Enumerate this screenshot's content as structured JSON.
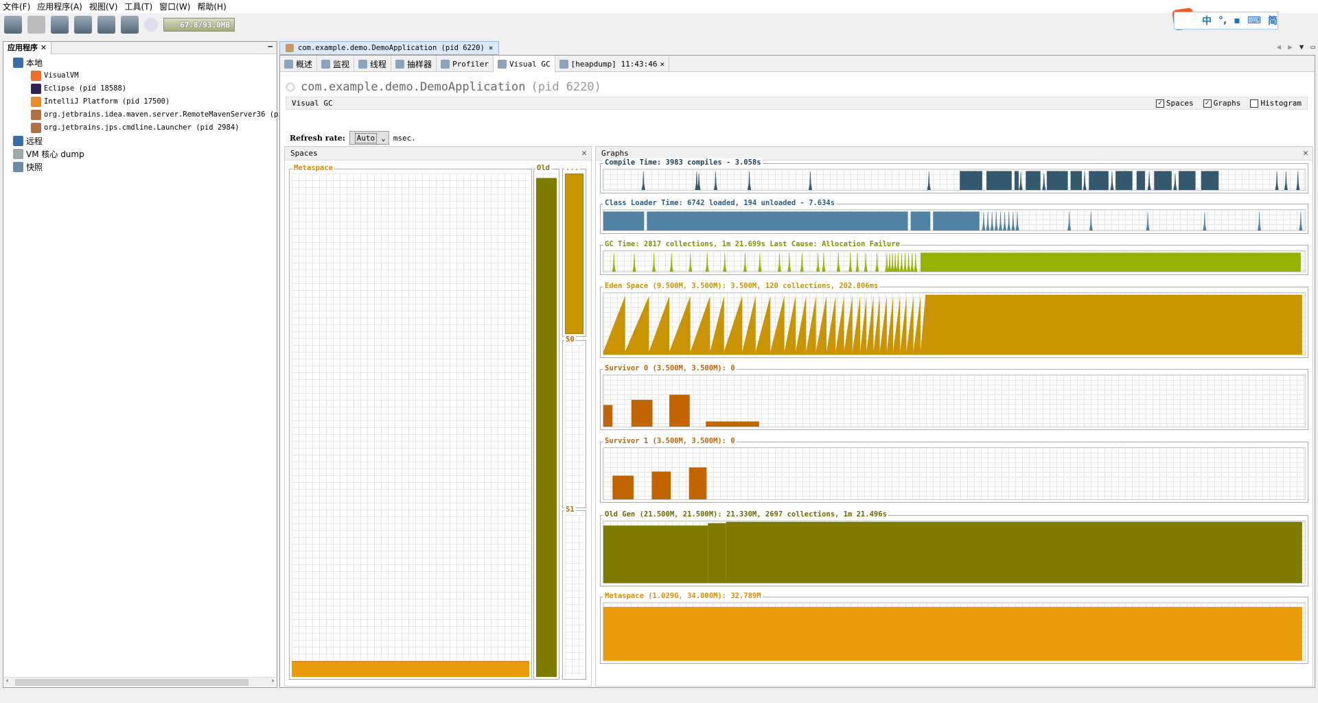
{
  "menu": [
    "文件(F)",
    "应用程序(A)",
    "视图(V)",
    "工具(T)",
    "窗口(W)",
    "帮助(H)"
  ],
  "memory": "67.8/93.0MB",
  "ime": {
    "logo": "S",
    "items": [
      "中",
      "°,",
      "▪",
      "⌨",
      "简"
    ]
  },
  "left": {
    "tab": "应用程序",
    "tree": [
      {
        "label": "本地",
        "level": 0,
        "icon": "computer-icon"
      },
      {
        "label": "VisualVM",
        "level": 1,
        "icon": "visualvm-icon"
      },
      {
        "label": "Eclipse (pid 18588)",
        "level": 1,
        "icon": "eclipse-icon"
      },
      {
        "label": "IntelliJ Platform (pid 17500)",
        "level": 1,
        "icon": "intellij-icon"
      },
      {
        "label": "org.jetbrains.idea.maven.server.RemoteMavenServer36 (pid",
        "level": 1,
        "icon": "java-icon"
      },
      {
        "label": "org.jetbrains.jps.cmdline.Launcher (pid 2984)",
        "level": 1,
        "icon": "java-icon"
      },
      {
        "label": "远程",
        "level": 0,
        "icon": "remote-icon"
      },
      {
        "label": "VM 核心 dump",
        "level": 0,
        "icon": "coredump-icon"
      },
      {
        "label": "快照",
        "level": 0,
        "icon": "snapshot-icon"
      }
    ]
  },
  "doc_tab": "com.example.demo.DemoApplication (pid 6220)",
  "subtabs": [
    "概述",
    "监视",
    "线程",
    "抽样器",
    "Profiler",
    "Visual GC",
    "[heapdump] 11:43:46"
  ],
  "app_title": "com.example.demo.DemoApplication",
  "app_pid": "(pid 6220)",
  "visual_gc": {
    "title": "Visual GC",
    "options": [
      {
        "label": "Spaces",
        "checked": true
      },
      {
        "label": "Graphs",
        "checked": true
      },
      {
        "label": "Histogram",
        "checked": false
      }
    ],
    "refresh_label": "Refresh rate:",
    "refresh_value": "Auto",
    "refresh_unit": "msec."
  },
  "spaces": {
    "title": "Spaces",
    "metaspace": {
      "label": "Metaspace",
      "fill": 0.032
    },
    "old": {
      "label": "Old",
      "fill": 0.992
    },
    "eden": {
      "label": "...",
      "fill": 1.0
    },
    "s0": {
      "label": "S0",
      "fill": 0
    },
    "s1": {
      "label": "S1",
      "fill": 0
    }
  },
  "graphs": {
    "title": "Graphs",
    "items": [
      {
        "label": "Compile Time: 3983 compiles - 3.058s",
        "color": "#34586e",
        "lcolor": "#1f3c55",
        "spikes": [
          [
            5.7,
            0.9
          ],
          [
            13.3,
            0.9
          ],
          [
            13.6,
            0.8
          ],
          [
            16,
            0.9
          ],
          [
            20.8,
            0.9
          ],
          [
            29.5,
            0.9
          ],
          [
            46.4,
            0.9
          ],
          [
            59.5,
            0.9
          ],
          [
            62.8,
            0.8
          ],
          [
            68.6,
            0.9
          ],
          [
            72.5,
            0.9
          ],
          [
            77.8,
            0.9
          ],
          [
            81.5,
            0.8
          ],
          [
            96,
            0.9
          ],
          [
            97.3,
            0.9
          ],
          [
            99,
            0.9
          ]
        ],
        "blocks": [
          [
            50.8,
            54,
            0.92
          ],
          [
            54.6,
            58.2,
            0.92
          ],
          [
            58.6,
            59.2,
            0.92
          ],
          [
            60.2,
            62.3,
            0.92
          ],
          [
            63.2,
            66.2,
            0.92
          ],
          [
            66.6,
            68.2,
            0.92
          ],
          [
            69.2,
            72,
            0.92
          ],
          [
            73,
            75.4,
            0.92
          ],
          [
            76,
            77.2,
            0.92
          ],
          [
            78.5,
            81,
            0.92
          ],
          [
            82,
            84.4,
            0.92
          ],
          [
            85.2,
            87.7,
            0.92
          ]
        ]
      },
      {
        "label": "Class Loader Time: 6742 loaded, 194 unloaded - 7.634s",
        "color": "#5082a4",
        "lcolor": "#2b5a80",
        "blocks": [
          [
            0,
            5.8,
            0.92
          ],
          [
            6.2,
            43.4,
            0.92
          ],
          [
            43.8,
            46.6,
            0.92
          ],
          [
            47,
            53.6,
            0.92
          ]
        ],
        "spikes": [
          [
            54.2,
            0.9
          ],
          [
            54.8,
            0.9
          ],
          [
            55.4,
            0.9
          ],
          [
            56,
            0.9
          ],
          [
            56.6,
            0.9
          ],
          [
            57.2,
            0.9
          ],
          [
            57.8,
            0.9
          ],
          [
            58.4,
            0.9
          ],
          [
            59,
            0.9
          ],
          [
            66.4,
            0.9
          ],
          [
            69.5,
            0.9
          ],
          [
            77.6,
            0.9
          ],
          [
            85.7,
            0.9
          ],
          [
            93.5,
            0.9
          ],
          [
            99.4,
            0.9
          ]
        ]
      },
      {
        "label": "GC Time: 2817 collections, 1m 21.699s  Last Cause: Allocation Failure",
        "color": "#94b300",
        "lcolor": "#7a9400",
        "spikes": [
          [
            1.5,
            0.9
          ],
          [
            4.4,
            0.9
          ],
          [
            7.2,
            0.9
          ],
          [
            9.7,
            0.9
          ],
          [
            12.4,
            0.9
          ],
          [
            14.8,
            0.9
          ],
          [
            17.3,
            0.9
          ],
          [
            20.2,
            0.9
          ],
          [
            22.3,
            0.9
          ],
          [
            25.1,
            0.9
          ],
          [
            26.5,
            0.9
          ],
          [
            28.3,
            0.9
          ],
          [
            30.6,
            0.9
          ],
          [
            31.4,
            0.9
          ],
          [
            33.5,
            0.9
          ],
          [
            35.2,
            0.9
          ],
          [
            36.2,
            0.9
          ],
          [
            37.4,
            0.9
          ],
          [
            39,
            0.9
          ],
          [
            40.4,
            0.9
          ],
          [
            40.8,
            0.9
          ],
          [
            41.2,
            0.9
          ],
          [
            41.6,
            0.9
          ],
          [
            42,
            0.9
          ],
          [
            42.5,
            0.9
          ],
          [
            43,
            0.9
          ],
          [
            43.5,
            0.9
          ],
          [
            44,
            0.9
          ],
          [
            44.5,
            0.9
          ]
        ],
        "blocks": [
          [
            45.2,
            99.4,
            0.92
          ]
        ]
      },
      {
        "label": "Eden Space (9.500M, 3.500M): 3.500M, 120 collections, 202.806ms",
        "color": "#c99400",
        "lcolor": "#c99400",
        "saw": [
          3.1,
          6.5,
          9.4,
          12.4,
          15.2,
          17.2,
          19.8,
          21.7,
          23.8,
          25.8,
          27.4,
          28.9,
          30.3,
          31.8,
          33.1,
          34.3,
          35.5,
          36.6,
          37.5,
          38.5,
          39.4,
          40.4,
          41.3,
          42.3,
          43.2,
          44.2,
          45.2,
          45.9
        ],
        "blocks": [
          [
            45.9,
            99.6,
            0.97
          ]
        ]
      },
      {
        "label": "Survivor 0 (3.500M, 3.500M): 0",
        "color": "#c26400",
        "lcolor": "#c26400",
        "blocks": [
          [
            0,
            1.3,
            0.42
          ],
          [
            4,
            7,
            0.52
          ],
          [
            9.4,
            12.3,
            0.62
          ],
          [
            14.6,
            22.2,
            0.1
          ]
        ]
      },
      {
        "label": "Survivor 1 (3.500M, 3.500M): 0",
        "color": "#c26400",
        "lcolor": "#c26400",
        "blocks": [
          [
            1.3,
            4.3,
            0.46
          ],
          [
            6.9,
            9.6,
            0.54
          ],
          [
            12.2,
            14.7,
            0.62
          ]
        ]
      },
      {
        "label": "Old Gen (21.500M, 21.500M): 21.330M, 2697 collections, 1m 21.496s",
        "color": "#7f7b00",
        "lcolor": "#6d6900",
        "blocks": [
          [
            0,
            14.9,
            0.93
          ],
          [
            14.9,
            17.5,
            0.97
          ],
          [
            17.5,
            99.6,
            0.99
          ]
        ]
      },
      {
        "label": "Metaspace (1.029G, 34.000M): 32.789M",
        "color": "#eb9a0c",
        "lcolor": "#e08c00",
        "blocks": [
          [
            0,
            99.6,
            0.93
          ]
        ]
      }
    ]
  }
}
